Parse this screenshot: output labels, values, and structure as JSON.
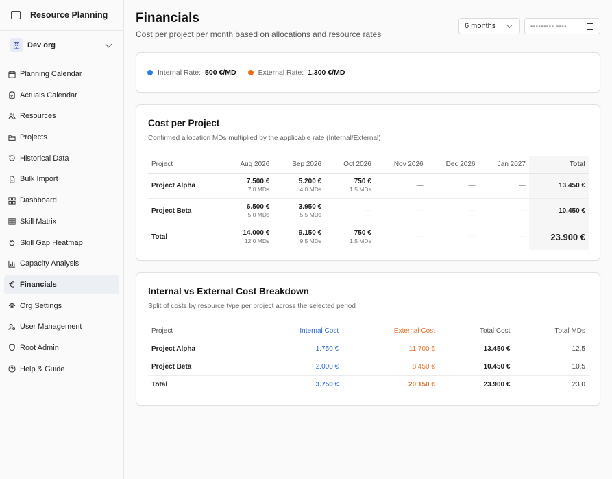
{
  "app": {
    "title": "Resource Planning"
  },
  "org": {
    "name": "Dev org"
  },
  "nav": [
    {
      "label": "Planning Calendar",
      "icon": "calendar-icon"
    },
    {
      "label": "Actuals Calendar",
      "icon": "clipboard-check-icon"
    },
    {
      "label": "Resources",
      "icon": "users-icon"
    },
    {
      "label": "Projects",
      "icon": "folder-icon"
    },
    {
      "label": "Historical Data",
      "icon": "history-icon"
    },
    {
      "label": "Bulk Import",
      "icon": "file-import-icon"
    },
    {
      "label": "Dashboard",
      "icon": "dashboard-grid-icon"
    },
    {
      "label": "Skill Matrix",
      "icon": "grid-icon"
    },
    {
      "label": "Skill Gap Heatmap",
      "icon": "flame-icon"
    },
    {
      "label": "Capacity Analysis",
      "icon": "bar-chart-icon"
    },
    {
      "label": "Financials",
      "icon": "euro-icon",
      "active": true
    },
    {
      "label": "Org Settings",
      "icon": "gear-icon"
    },
    {
      "label": "User Management",
      "icon": "user-cog-icon"
    },
    {
      "label": "Root Admin",
      "icon": "shield-icon"
    },
    {
      "label": "Help & Guide",
      "icon": "help-circle-icon"
    }
  ],
  "header": {
    "title": "Financials",
    "subtitle": "Cost per project per month based on allocations and resource rates",
    "period_value": "6 months",
    "date_value": "--------- ----"
  },
  "rates": {
    "internal_label": "Internal Rate:",
    "internal_value": "500 €/MD",
    "internal_color": "#2f7de1",
    "external_label": "External Rate:",
    "external_value": "1.300 €/MD",
    "external_color": "#ef6c1a"
  },
  "cost_per_project": {
    "title": "Cost per Project",
    "subtitle": "Confirmed allocation MDs multiplied by the applicable rate (Internal/External)",
    "columns": [
      "Project",
      "Aug 2026",
      "Sep 2026",
      "Oct 2026",
      "Nov 2026",
      "Dec 2026",
      "Jan 2027",
      "Total"
    ],
    "rows": [
      {
        "project": "Project Alpha",
        "cells": [
          {
            "amt": "7.500 €",
            "mds": "7.0 MDs"
          },
          {
            "amt": "5.200 €",
            "mds": "4.0 MDs"
          },
          {
            "amt": "750 €",
            "mds": "1.5 MDs"
          },
          {
            "amt": "—",
            "mds": ""
          },
          {
            "amt": "—",
            "mds": ""
          },
          {
            "amt": "—",
            "mds": ""
          }
        ],
        "total": "13.450 €"
      },
      {
        "project": "Project Beta",
        "cells": [
          {
            "amt": "6.500 €",
            "mds": "5.0 MDs"
          },
          {
            "amt": "3.950 €",
            "mds": "5.5 MDs"
          },
          {
            "amt": "—",
            "mds": ""
          },
          {
            "amt": "—",
            "mds": ""
          },
          {
            "amt": "—",
            "mds": ""
          },
          {
            "amt": "—",
            "mds": ""
          }
        ],
        "total": "10.450 €"
      }
    ],
    "total_row": {
      "label": "Total",
      "cells": [
        {
          "amt": "14.000 €",
          "mds": "12.0 MDs"
        },
        {
          "amt": "9.150 €",
          "mds": "9.5 MDs"
        },
        {
          "amt": "750 €",
          "mds": "1.5 MDs"
        },
        {
          "amt": "—",
          "mds": ""
        },
        {
          "amt": "—",
          "mds": ""
        },
        {
          "amt": "—",
          "mds": ""
        }
      ],
      "total": "23.900 €"
    }
  },
  "breakdown": {
    "title": "Internal vs External Cost Breakdown",
    "subtitle": "Split of costs by resource type per project across the selected period",
    "columns": [
      "Project",
      "Internal Cost",
      "External Cost",
      "Total Cost",
      "Total MDs"
    ],
    "rows": [
      {
        "project": "Project Alpha",
        "internal": "1.750 €",
        "external": "11.700 €",
        "total": "13.450 €",
        "mds": "12.5"
      },
      {
        "project": "Project Beta",
        "internal": "2.000 €",
        "external": "8.450 €",
        "total": "10.450 €",
        "mds": "10.5"
      }
    ],
    "total_row": {
      "project": "Total",
      "internal": "3.750 €",
      "external": "20.150 €",
      "total": "23.900 €",
      "mds": "23.0"
    }
  }
}
